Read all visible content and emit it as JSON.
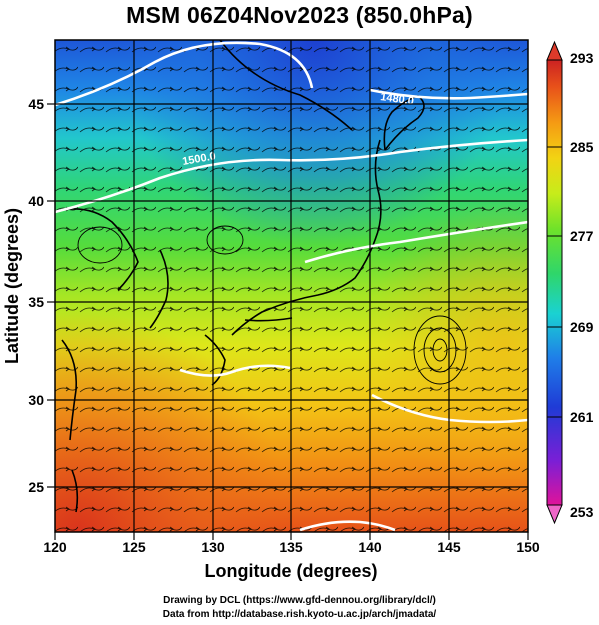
{
  "title": "MSM 06Z04Nov2023 (850.0hPa)",
  "x_axis": {
    "label": "Longitude (degrees)",
    "ticks": [
      "120",
      "125",
      "130",
      "135",
      "140",
      "145",
      "150"
    ],
    "range": [
      120,
      150
    ]
  },
  "y_axis": {
    "label": "Latitude  (degrees)",
    "ticks": [
      "25",
      "30",
      "35",
      "40",
      "45"
    ],
    "range": [
      22.5,
      47.6
    ]
  },
  "colorbar": {
    "labels": [
      "293",
      "285",
      "277",
      "269",
      "261",
      "253"
    ],
    "range": [
      253,
      293
    ],
    "colors": [
      "#e0139a",
      "#7a1fd6",
      "#1f3bd6",
      "#1f7ee8",
      "#1ad2d2",
      "#2fd66a",
      "#6fe22a",
      "#c7ec1a",
      "#f2d313",
      "#f59a13",
      "#e8511a",
      "#cc2222"
    ]
  },
  "contour_labels": [
    "1480.0",
    "1500.0"
  ],
  "credits": {
    "line1": "Drawing by DCL (https://www.gfd-dennou.org/library/dcl/)",
    "line2": "Data from http://database.rish.kyoto-u.ac.jp/arch/jmadata/"
  },
  "colors": {
    "contour": "#ffffff",
    "coast": "#000000",
    "streamline": "#000000"
  }
}
